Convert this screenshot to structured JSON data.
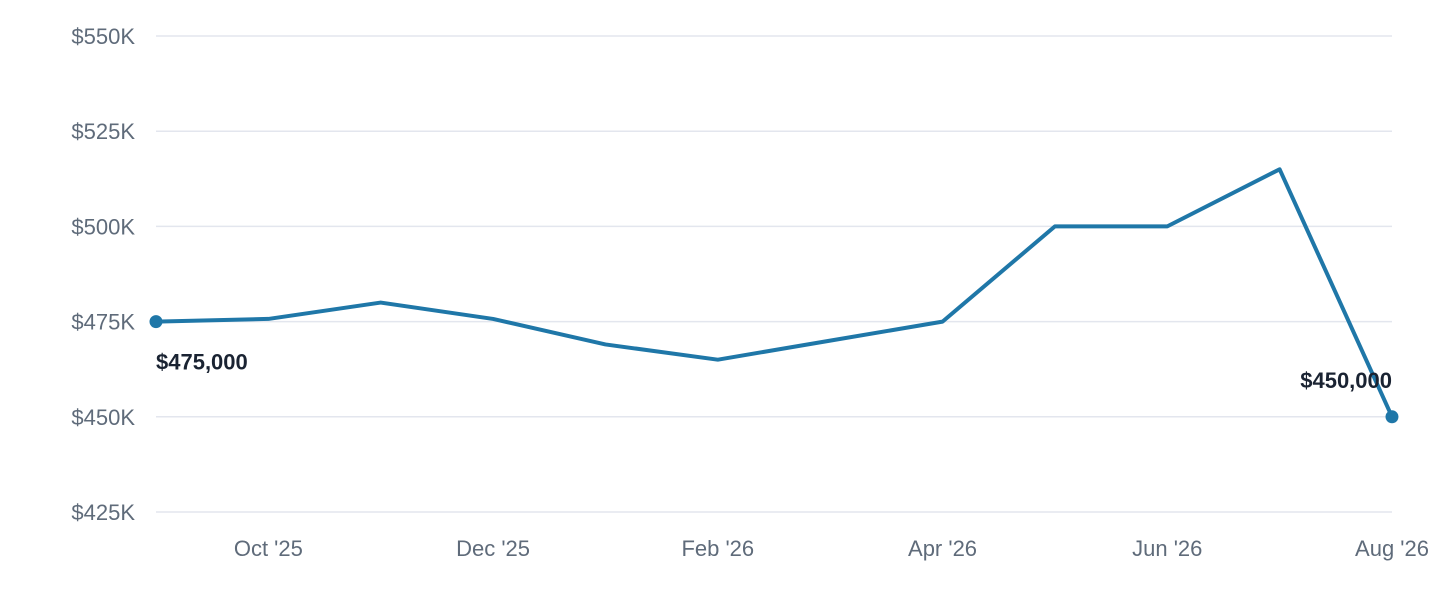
{
  "chart_data": {
    "type": "line",
    "title": "",
    "xlabel": "",
    "ylabel": "",
    "x": [
      "2025-09",
      "2025-10",
      "2025-11",
      "2025-12",
      "2026-01",
      "2026-02",
      "2026-03",
      "2026-04",
      "2026-05",
      "2026-06",
      "2026-07",
      "2026-08"
    ],
    "x_tick_labels": [
      "Oct '25",
      "Dec '25",
      "Feb '26",
      "Apr '26",
      "Jun '26",
      "Aug '26"
    ],
    "x_tick_positions": [
      "2025-10",
      "2025-12",
      "2026-02",
      "2026-04",
      "2026-06",
      "2026-08"
    ],
    "series": [
      {
        "values": [
          475000,
          475700,
          480000,
          475700,
          469000,
          465000,
          470000,
          475000,
          500000,
          500000,
          515000,
          450000
        ]
      }
    ],
    "y_tick_values": [
      425000,
      450000,
      475000,
      500000,
      525000,
      550000
    ],
    "y_tick_labels": [
      "$425K",
      "$450K",
      "$475K",
      "$500K",
      "$525K",
      "$550K"
    ],
    "ylim": [
      425000,
      550000
    ],
    "grid": true,
    "legend": "none",
    "line_color": "#1f77a8",
    "annotations": [
      {
        "x": "2025-09",
        "value": 475000,
        "text": "$475,000",
        "placement": "below-right"
      },
      {
        "x": "2026-08",
        "value": 450000,
        "text": "$450,000",
        "placement": "above-left"
      }
    ]
  }
}
